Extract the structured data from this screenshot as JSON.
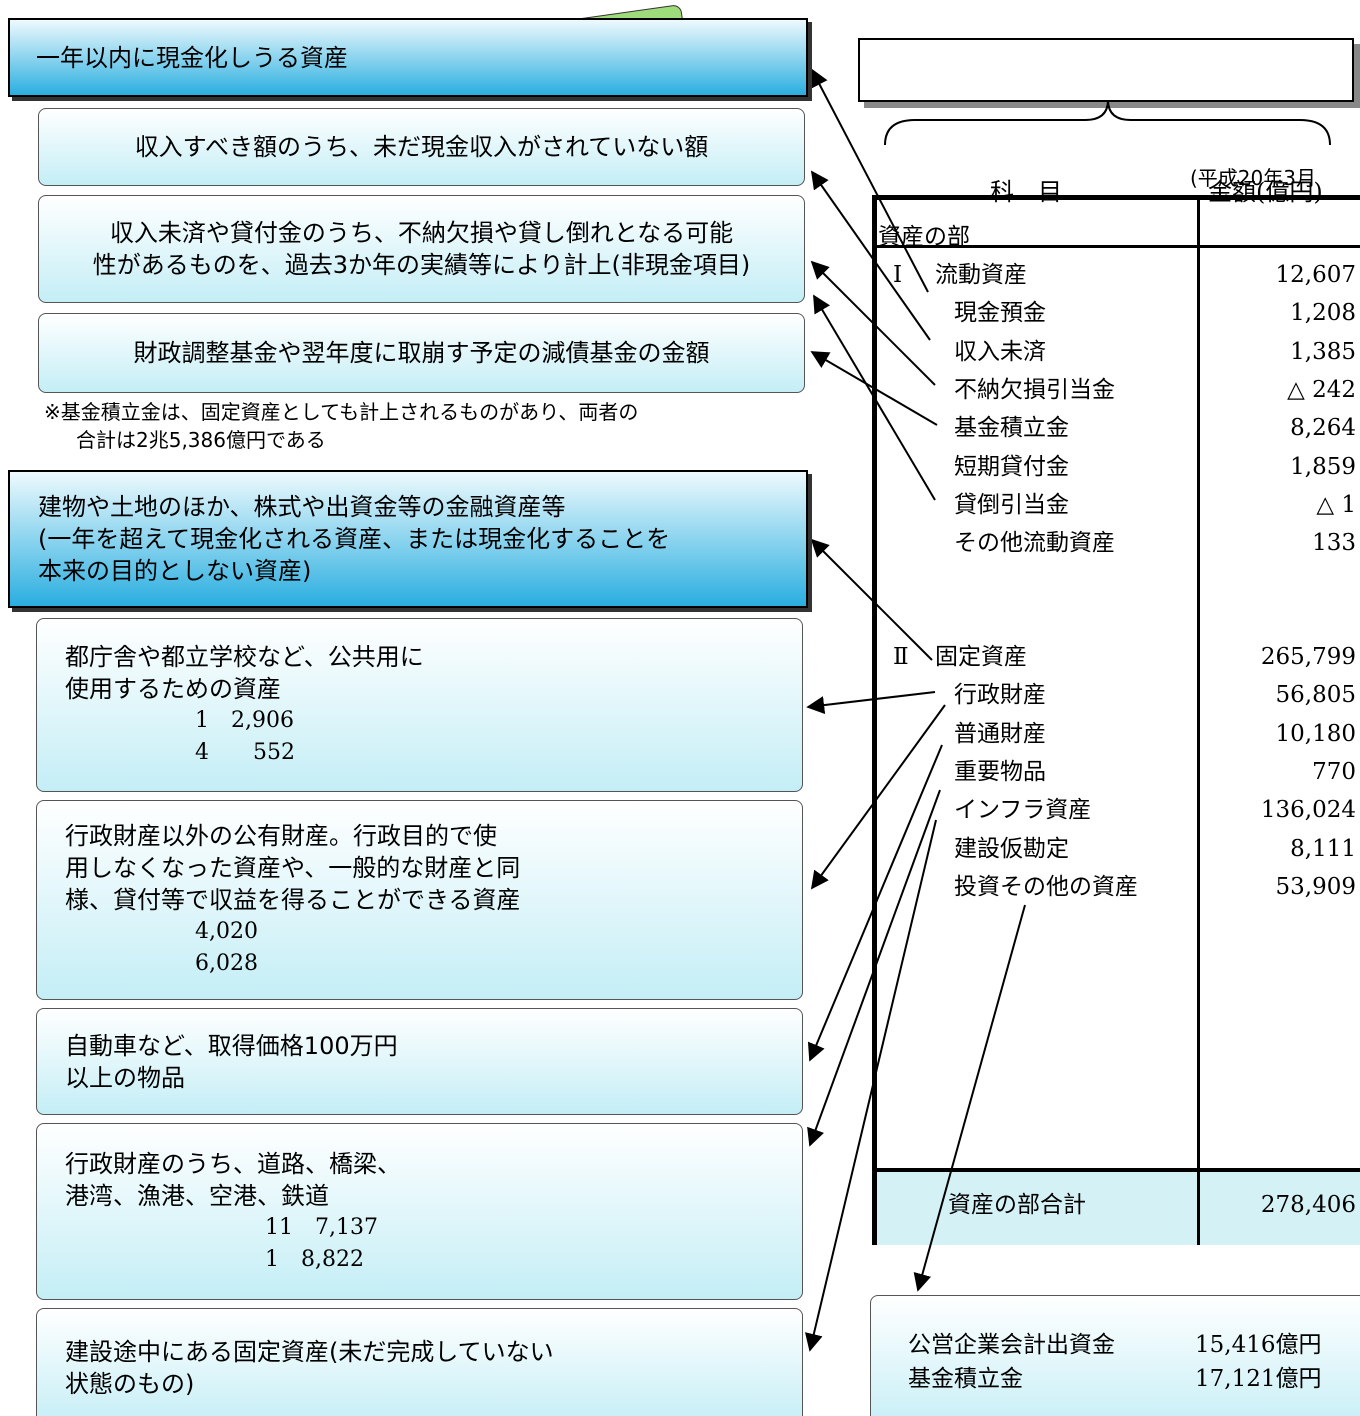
{
  "current_header": "一年以内に現金化しうる資産",
  "current_notes": [
    {
      "lines": [
        "収入すべき額のうち、未だ現金収入がされていない額"
      ]
    },
    {
      "lines": [
        "収入未済や貸付金のうち、不納欠損や貸し倒れとなる可能",
        "性があるものを、過去3か年の実績等により計上(非現金項目)"
      ]
    },
    {
      "lines": [
        "財政調整基金や翌年度に取崩す予定の減債基金の金額"
      ]
    }
  ],
  "fund_note": {
    "lines": [
      "※基金積立金は、固定資産としても計上されるものがあり、両者の",
      "合計は2兆5,386億円である"
    ]
  },
  "fixed_header": {
    "lines": [
      "建物や土地のほか、株式や出資金等の金融資産等",
      "(一年を超えて現金化される資産、または現金化することを",
      "本来の目的としない資産)"
    ]
  },
  "fixed_notes": [
    {
      "lines": [
        "都庁舎や都立学校など、公共用に",
        "使用するための資産"
      ],
      "figures": [
        "1　2,906",
        "4　　552"
      ]
    },
    {
      "lines": [
        "行政財産以外の公有財産。行政目的で使",
        "用しなくなった資産や、一般的な財産と同",
        "様、貸付等で収益を得ることができる資産"
      ],
      "figures": [
        "4,020",
        "6,028"
      ]
    },
    {
      "lines": [
        "自動車など、取得価格100万円",
        "以上の物品"
      ]
    },
    {
      "lines": [
        "行政財産のうち、道路、橋梁、",
        "港湾、漁港、空港、鉄道"
      ],
      "figures": [
        "11　7,137",
        "1　8,822"
      ]
    },
    {
      "lines": [
        "建設途中にある固定資産(未だ完成していない",
        "状態のもの)"
      ]
    }
  ],
  "date_note": "(平成20年3月",
  "table": {
    "header": [
      "科　目",
      "金額(億円)"
    ],
    "section": "資産の部",
    "groups": [
      {
        "numeral": "Ⅰ",
        "name": "流動資産",
        "amount": "12,607",
        "items": [
          [
            "現金預金",
            "1,208"
          ],
          [
            "収入未済",
            "1,385"
          ],
          [
            "不納欠損引当金",
            "△ 242"
          ],
          [
            "基金積立金",
            "8,264"
          ],
          [
            "短期貸付金",
            "1,859"
          ],
          [
            "貸倒引当金",
            "△ 1"
          ],
          [
            "その他流動資産",
            "133"
          ]
        ]
      },
      {
        "numeral": "Ⅱ",
        "name": "固定資産",
        "amount": "265,799",
        "items": [
          [
            "行政財産",
            "56,805"
          ],
          [
            "普通財産",
            "10,180"
          ],
          [
            "重要物品",
            "770"
          ],
          [
            "インフラ資産",
            "136,024"
          ],
          [
            "建設仮勘定",
            "8,111"
          ],
          [
            "投資その他の資産",
            "53,909"
          ]
        ]
      }
    ],
    "total": [
      "資産の部合計",
      "278,406"
    ]
  },
  "investment_box": {
    "rows": [
      [
        "公営企業会計出資金",
        "15,416億円"
      ],
      [
        "基金積立金",
        "17,121億円"
      ]
    ]
  }
}
